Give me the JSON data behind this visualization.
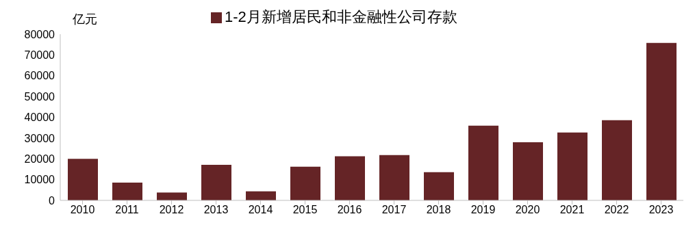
{
  "chart_data": {
    "type": "bar",
    "ylabel": "亿元",
    "categories": [
      "2010",
      "2011",
      "2012",
      "2013",
      "2014",
      "2015",
      "2016",
      "2017",
      "2018",
      "2019",
      "2020",
      "2021",
      "2022",
      "2023"
    ],
    "series": [
      {
        "name": "1-2月新增居民和非金融性公司存款",
        "color": "#652426",
        "values": [
          20000,
          8600,
          3800,
          17100,
          4400,
          16200,
          21200,
          21800,
          13600,
          36000,
          28000,
          32700,
          38600,
          75800
        ]
      }
    ],
    "ylim": [
      0,
      80000
    ],
    "yticks": [
      0,
      10000,
      20000,
      30000,
      40000,
      50000,
      60000,
      70000,
      80000
    ],
    "grid": false,
    "legend": "top"
  }
}
